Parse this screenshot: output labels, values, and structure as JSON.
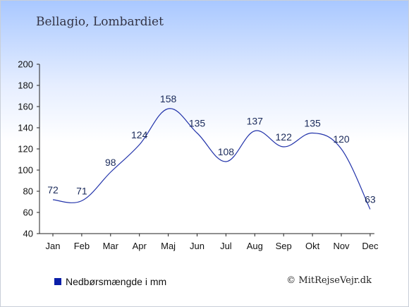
{
  "header": {
    "title": "Bellagio, Lombardiet"
  },
  "legend": {
    "label": "Nedbørsmængde i mm",
    "swatch_color": "#0b1fa8"
  },
  "credit": {
    "text": "© MitRejseVejr.dk"
  },
  "chart_data": {
    "type": "line",
    "title": "Bellagio, Lombardiet",
    "xlabel": "",
    "ylabel": "",
    "categories": [
      "Jan",
      "Feb",
      "Mar",
      "Apr",
      "Maj",
      "Jun",
      "Jul",
      "Aug",
      "Sep",
      "Okt",
      "Nov",
      "Dec"
    ],
    "series": [
      {
        "name": "Nedbørsmængde i mm",
        "values": [
          72,
          71,
          98,
          124,
          158,
          135,
          108,
          137,
          122,
          135,
          120,
          63
        ],
        "color": "#2233aa"
      }
    ],
    "ylim": [
      40,
      200
    ],
    "yticks": [
      40,
      60,
      80,
      100,
      120,
      140,
      160,
      180,
      200
    ],
    "grid": false,
    "legend_position": "bottom-left"
  }
}
